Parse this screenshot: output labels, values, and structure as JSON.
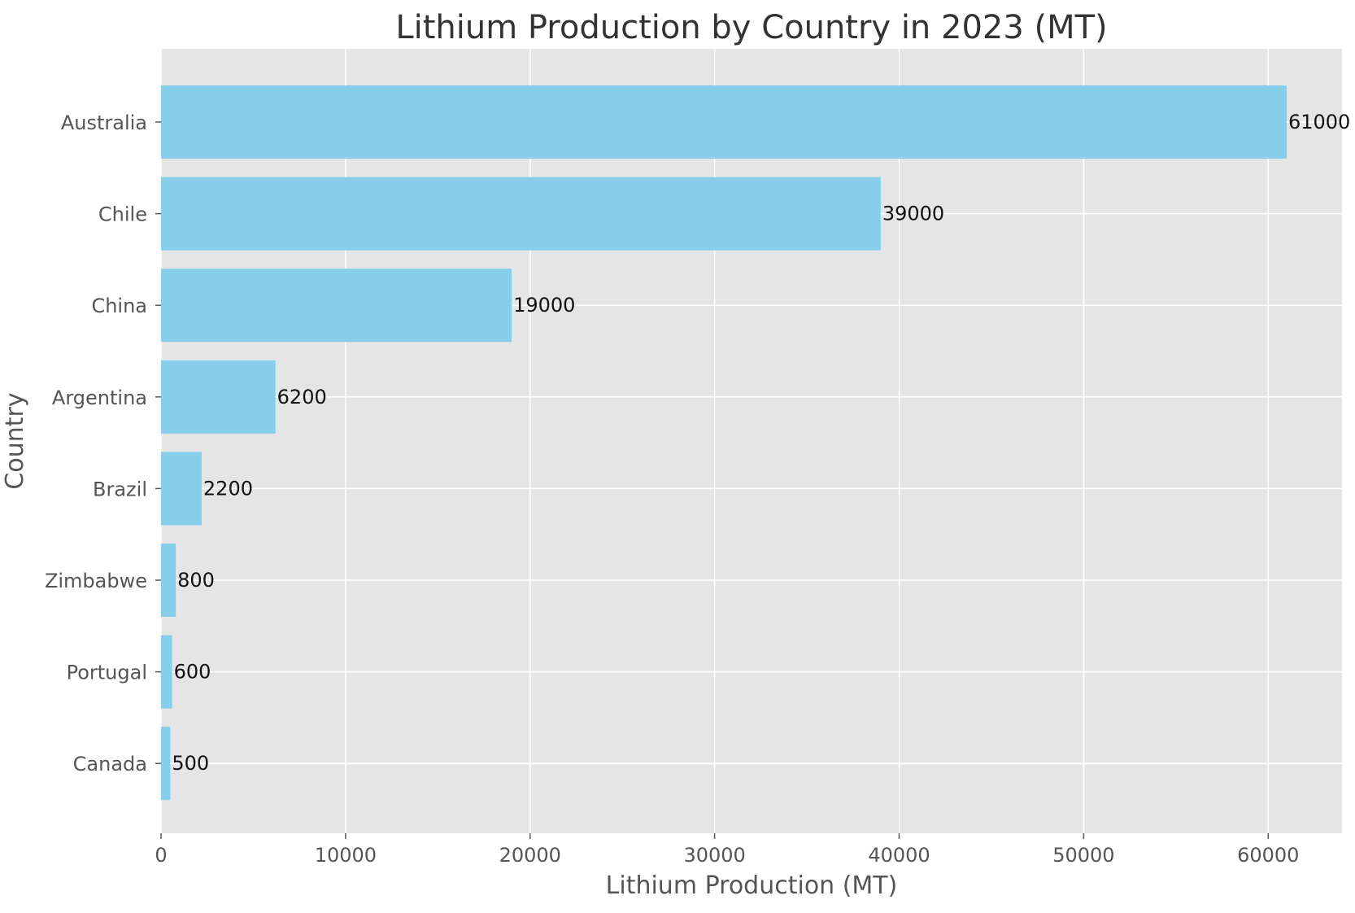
{
  "chart_data": {
    "type": "bar",
    "orientation": "horizontal",
    "title": "Lithium Production by Country in 2023 (MT)",
    "xlabel": "Lithium Production (MT)",
    "ylabel": "Country",
    "categories": [
      "Australia",
      "Chile",
      "China",
      "Argentina",
      "Brazil",
      "Zimbabwe",
      "Portugal",
      "Canada"
    ],
    "values": [
      61000,
      39000,
      19000,
      6200,
      2200,
      800,
      600,
      500
    ],
    "data_labels": [
      "61000",
      "39000",
      "19000",
      "6200",
      "2200",
      "800",
      "600",
      "500"
    ],
    "xlim": [
      0,
      64000
    ],
    "xticks": [
      0,
      10000,
      20000,
      30000,
      40000,
      50000,
      60000
    ],
    "xtick_labels": [
      "0",
      "10000",
      "20000",
      "30000",
      "40000",
      "50000",
      "60000"
    ],
    "grid": true,
    "legend": "none",
    "colors": {
      "bar": "#87ceeb",
      "plot_background": "#e5e5e5",
      "grid": "#ffffff"
    }
  }
}
